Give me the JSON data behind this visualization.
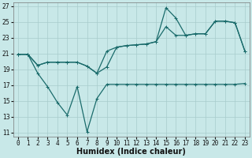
{
  "xlabel": "Humidex (Indice chaleur)",
  "background_color": "#c8e8e8",
  "grid_color": "#a8cccc",
  "line_color": "#1a6b6b",
  "xlim": [
    -0.5,
    23.5
  ],
  "ylim": [
    10.5,
    27.5
  ],
  "yticks": [
    11,
    13,
    15,
    17,
    19,
    21,
    23,
    25,
    27
  ],
  "xticks": [
    0,
    1,
    2,
    3,
    4,
    5,
    6,
    7,
    8,
    9,
    10,
    11,
    12,
    13,
    14,
    15,
    16,
    17,
    18,
    19,
    20,
    21,
    22,
    23
  ],
  "line1_x": [
    0,
    1,
    2,
    3,
    4,
    5,
    6,
    7,
    8,
    9,
    10,
    11,
    12,
    13,
    14,
    15,
    16,
    17,
    18,
    19,
    20,
    21,
    22,
    23
  ],
  "line1_y": [
    20.9,
    20.9,
    18.5,
    16.8,
    14.8,
    13.2,
    16.8,
    11.1,
    15.3,
    17.1,
    17.1,
    17.1,
    17.1,
    17.1,
    17.1,
    17.1,
    17.1,
    17.1,
    17.1,
    17.1,
    17.1,
    17.1,
    17.1,
    17.2
  ],
  "line2_x": [
    0,
    1,
    2,
    3,
    4,
    5,
    6,
    7,
    8,
    9,
    10,
    11,
    12,
    13,
    14,
    15,
    16,
    17,
    18,
    19,
    20,
    21,
    22,
    23
  ],
  "line2_y": [
    20.9,
    20.9,
    19.5,
    19.9,
    19.9,
    19.9,
    19.9,
    19.4,
    18.5,
    21.3,
    21.8,
    22.0,
    22.1,
    22.2,
    22.5,
    24.4,
    23.3,
    23.3,
    23.5,
    23.5,
    25.1,
    25.1,
    24.9,
    21.3
  ],
  "line3_x": [
    0,
    1,
    2,
    3,
    4,
    5,
    6,
    7,
    8,
    9,
    10,
    11,
    12,
    13,
    14,
    15,
    16,
    17,
    18,
    19,
    20,
    21,
    22,
    23
  ],
  "line3_y": [
    20.9,
    20.9,
    19.5,
    19.9,
    19.9,
    19.9,
    19.9,
    19.4,
    18.5,
    19.3,
    21.8,
    22.0,
    22.1,
    22.2,
    22.5,
    26.8,
    25.5,
    23.3,
    23.5,
    23.5,
    25.1,
    25.1,
    24.9,
    21.3
  ],
  "marker_size": 2.5,
  "line_width": 0.9,
  "tick_fontsize": 5.5,
  "xlabel_fontsize": 7.0
}
